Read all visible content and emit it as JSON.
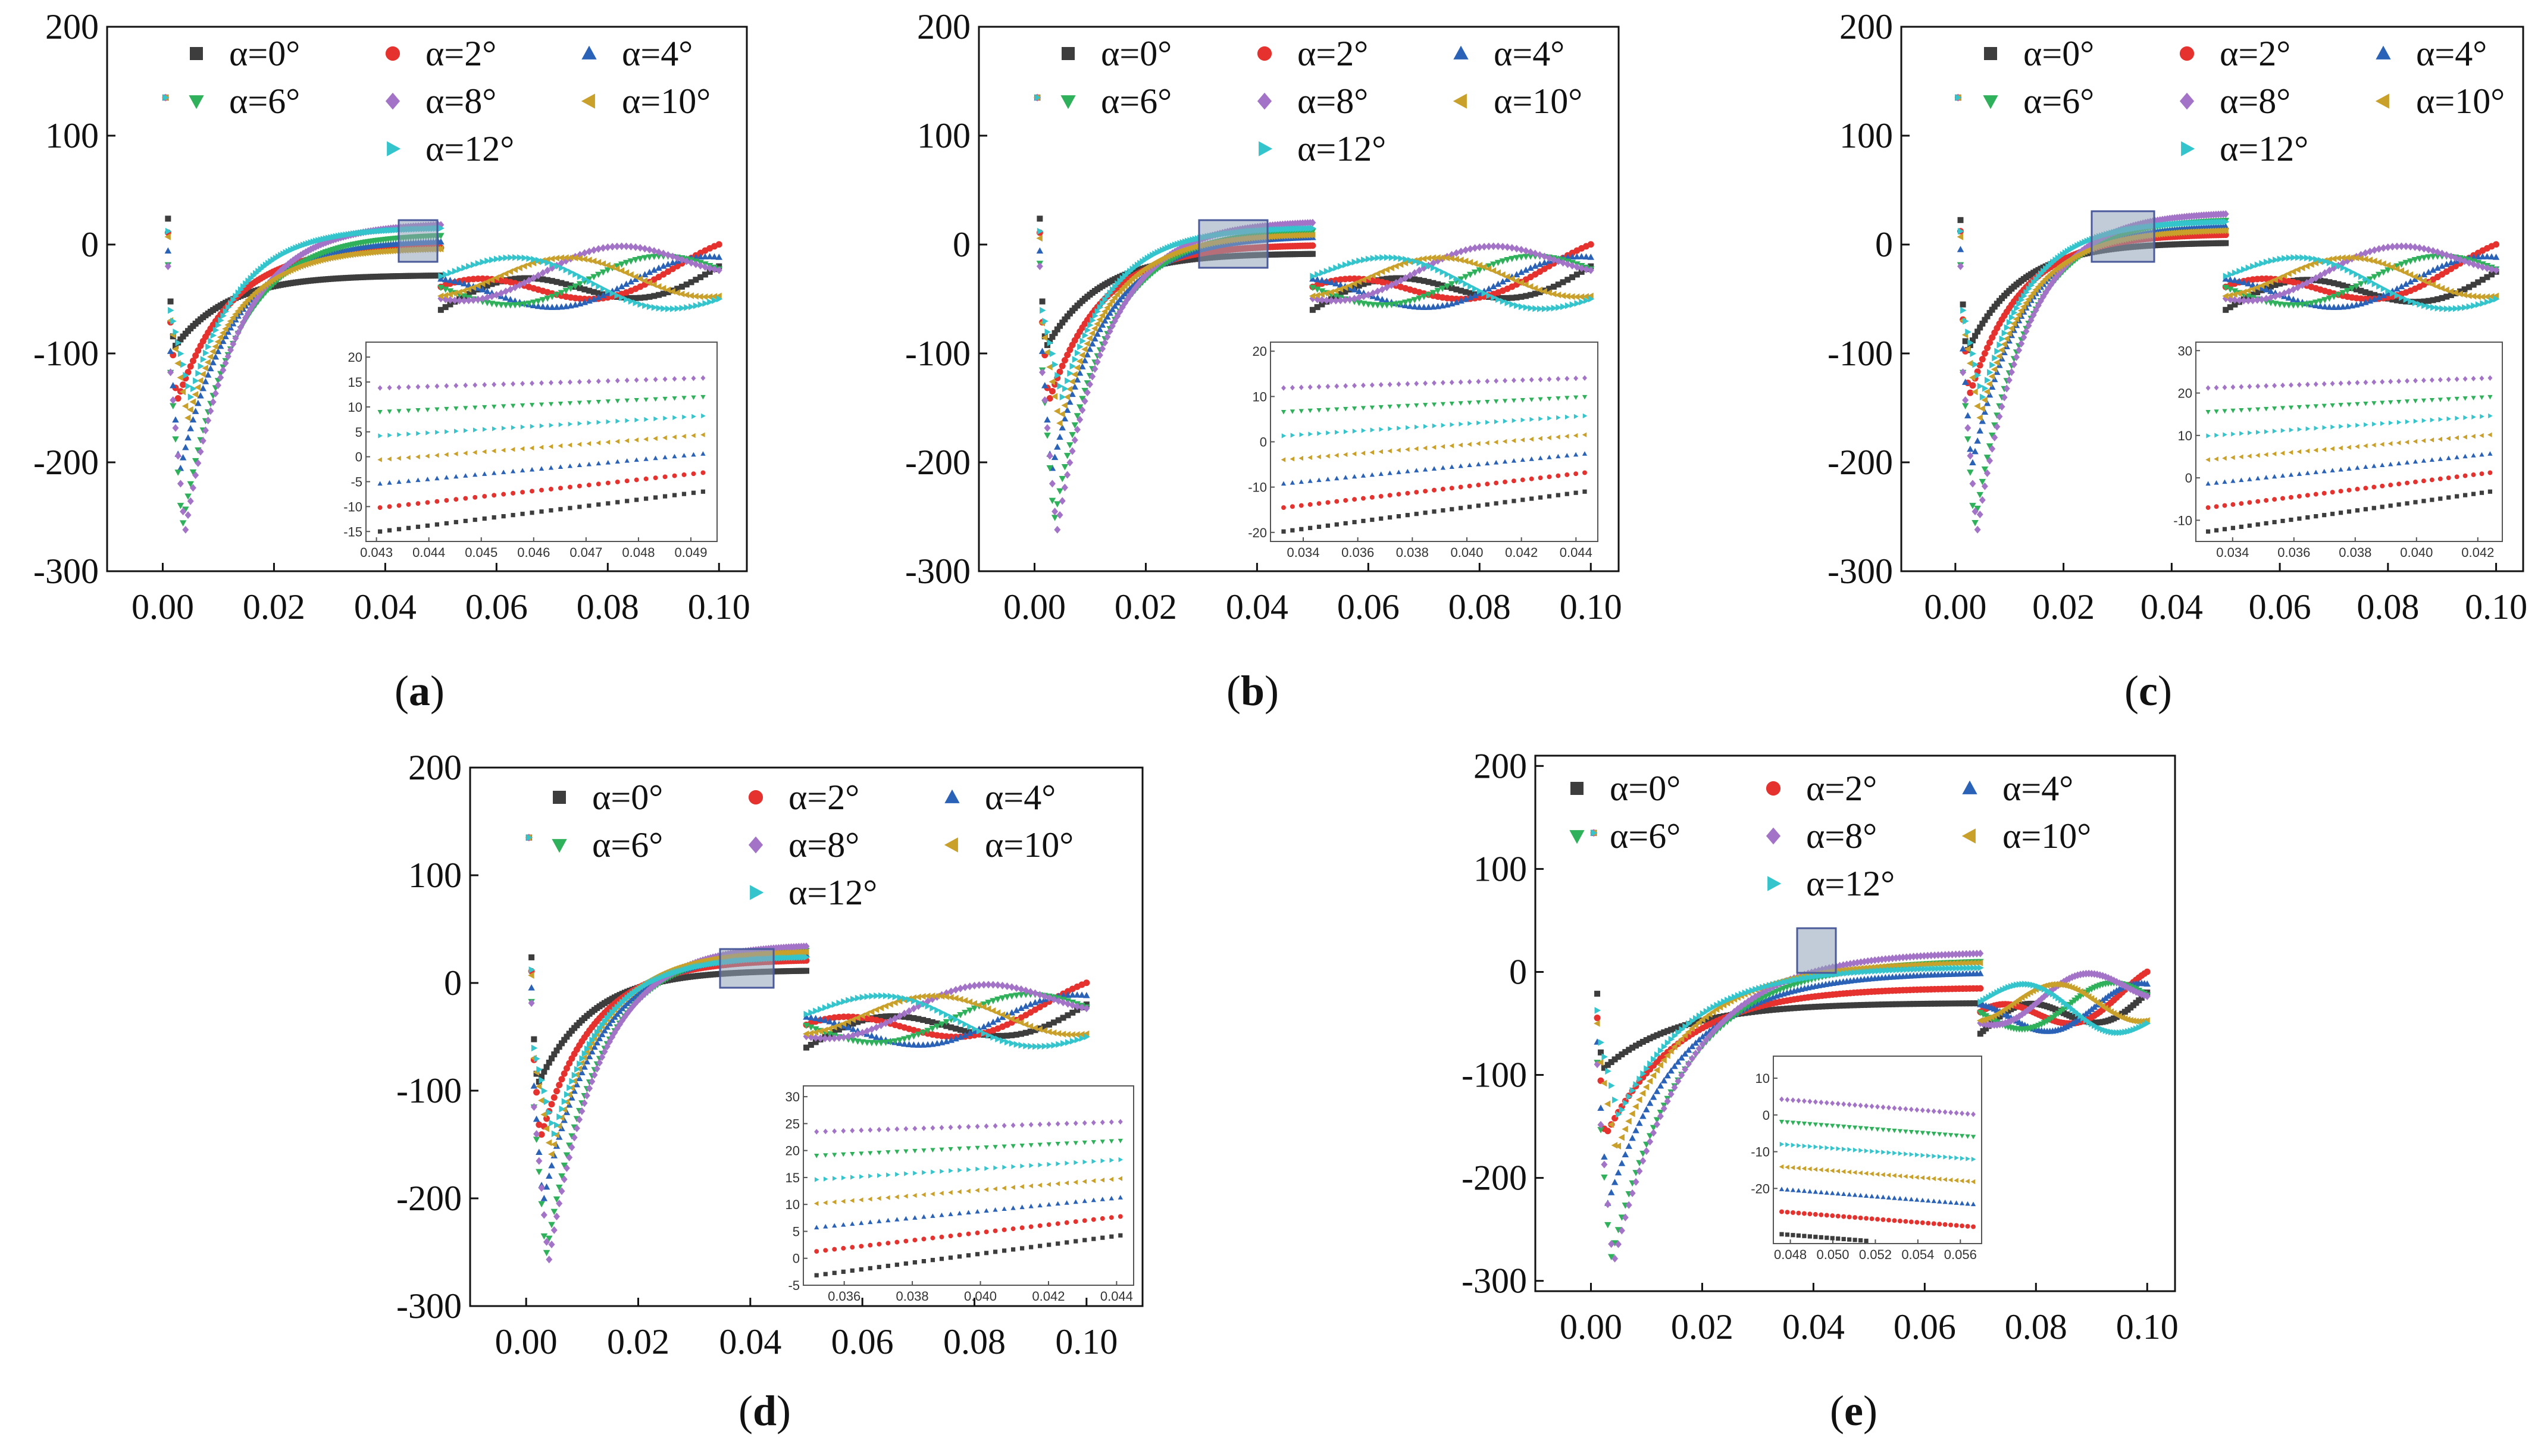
{
  "chart_data": [
    {
      "panel": "a",
      "type": "scatter",
      "x_ticks": [
        "0.00",
        "0.02",
        "0.04",
        "0.06",
        "0.08",
        "0.10"
      ],
      "y_ticks": [
        "200",
        "100",
        "0",
        "-100",
        "-200",
        "-300"
      ],
      "xlim": [
        -0.01,
        0.105
      ],
      "ylim": [
        -300,
        200
      ],
      "inset": {
        "x_ticks": [
          "0.043",
          "0.044",
          "0.045",
          "0.046",
          "0.047",
          "0.048",
          "0.049"
        ],
        "y_ticks": [
          "20",
          "15",
          "10",
          "5",
          "0",
          "-5",
          "-10",
          "-15"
        ],
        "xlim": [
          0.0428,
          0.0495
        ],
        "ylim": [
          -17,
          23
        ]
      }
    },
    {
      "panel": "b",
      "type": "scatter",
      "x_ticks": [
        "0.00",
        "0.02",
        "0.04",
        "0.06",
        "0.08",
        "0.10"
      ],
      "y_ticks": [
        "200",
        "100",
        "0",
        "-100",
        "-200",
        "-300"
      ],
      "xlim": [
        -0.01,
        0.105
      ],
      "ylim": [
        -300,
        200
      ],
      "inset": {
        "x_ticks": [
          "0.034",
          "0.036",
          "0.038",
          "0.040",
          "0.042",
          "0.044"
        ],
        "y_ticks": [
          "20",
          "10",
          "0",
          "-10",
          "-20"
        ],
        "xlim": [
          0.0328,
          0.0448
        ],
        "ylim": [
          -22,
          22
        ]
      }
    },
    {
      "panel": "c",
      "type": "scatter",
      "x_ticks": [
        "0.00",
        "0.02",
        "0.04",
        "0.06",
        "0.08",
        "0.10"
      ],
      "y_ticks": [
        "200",
        "100",
        "0",
        "-100",
        "-200",
        "-300"
      ],
      "xlim": [
        -0.01,
        0.105
      ],
      "ylim": [
        -300,
        200
      ],
      "inset": {
        "x_ticks": [
          "0.034",
          "0.036",
          "0.038",
          "0.040",
          "0.042"
        ],
        "y_ticks": [
          "30",
          "20",
          "10",
          "0",
          "-10"
        ],
        "xlim": [
          0.0328,
          0.0428
        ],
        "ylim": [
          -15,
          32
        ]
      }
    },
    {
      "panel": "d",
      "type": "scatter",
      "x_ticks": [
        "0.00",
        "0.02",
        "0.04",
        "0.06",
        "0.08",
        "0.10"
      ],
      "y_ticks": [
        "200",
        "100",
        "0",
        "-100",
        "-200",
        "-300"
      ],
      "xlim": [
        -0.01,
        0.11
      ],
      "ylim": [
        -300,
        200
      ],
      "inset": {
        "x_ticks": [
          "0.036",
          "0.038",
          "0.040",
          "0.042",
          "0.044"
        ],
        "y_ticks": [
          "30",
          "25",
          "20",
          "15",
          "10",
          "5",
          "0",
          "-5"
        ],
        "xlim": [
          0.0348,
          0.0445
        ],
        "ylim": [
          -5,
          32
        ]
      }
    },
    {
      "panel": "e",
      "type": "scatter",
      "x_ticks": [
        "0.00",
        "0.02",
        "0.04",
        "0.06",
        "0.08",
        "0.10"
      ],
      "y_ticks": [
        "200",
        "100",
        "0",
        "-100",
        "-200",
        "-300"
      ],
      "xlim": [
        -0.01,
        0.105
      ],
      "ylim": [
        -310,
        210
      ],
      "inset": {
        "x_ticks": [
          "0.048",
          "0.050",
          "0.052",
          "0.054",
          "0.056"
        ],
        "y_ticks": [
          "10",
          "0",
          "-10",
          "-20"
        ],
        "xlim": [
          0.0472,
          0.057
        ],
        "ylim": [
          -35,
          16
        ]
      }
    }
  ],
  "legend": [
    {
      "label": "α=0°",
      "marker": "square",
      "color": "#3d3d3d"
    },
    {
      "label": "α=2°",
      "marker": "circle",
      "color": "#e5322e"
    },
    {
      "label": "α=4°",
      "marker": "triangle-up",
      "color": "#2a62b8"
    },
    {
      "label": "α=6°",
      "marker": "triangle-down",
      "color": "#2fb05a"
    },
    {
      "label": "α=8°",
      "marker": "diamond",
      "color": "#a373c8"
    },
    {
      "label": "α=10°",
      "marker": "triangle-left",
      "color": "#c9a02a"
    },
    {
      "label": "α=12°",
      "marker": "triangle-right",
      "color": "#33c4cc"
    }
  ],
  "captions": {
    "a": "a",
    "b": "b",
    "c": "c",
    "d": "d",
    "e": "e"
  },
  "caption_open": "(",
  "caption_close": ")"
}
